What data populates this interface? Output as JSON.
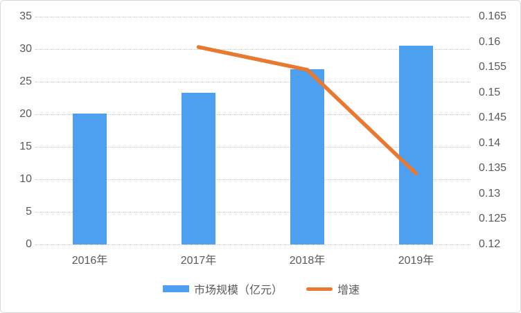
{
  "chart_data": {
    "type": "bar",
    "subtype": "bar+line dual axis",
    "title": "",
    "categories": [
      "2016年",
      "2017年",
      "2018年",
      "2019年"
    ],
    "series": [
      {
        "name": "市场规模（亿元）",
        "type": "bar",
        "axis": "left",
        "color": "#4d9ff0",
        "values": [
          20.1,
          23.3,
          26.9,
          30.5
        ]
      },
      {
        "name": "增速",
        "type": "line",
        "axis": "right",
        "color": "#e87930",
        "values": [
          null,
          0.159,
          0.1545,
          0.134
        ]
      }
    ],
    "left_axis": {
      "min": 0,
      "max": 35,
      "step": 5,
      "ticks": [
        "35",
        "30",
        "25",
        "20",
        "15",
        "10",
        "5",
        "0"
      ]
    },
    "right_axis": {
      "min": 0.12,
      "max": 0.165,
      "step": 0.005,
      "ticks": [
        "0.165",
        "0.16",
        "0.155",
        "0.15",
        "0.145",
        "0.14",
        "0.135",
        "0.13",
        "0.125",
        "0.12"
      ]
    },
    "grid": true,
    "legend_position": "bottom",
    "legend": [
      {
        "label": "市场规模（亿元）",
        "swatch": "bar",
        "series": 0
      },
      {
        "label": "增速",
        "swatch": "line",
        "series": 1
      }
    ],
    "colors": {
      "bar_fill": "#4d9ff0",
      "line_stroke": "#e87930",
      "gridline": "#c6c6c6",
      "tick_text": "#595959",
      "border": "#d9d9d9",
      "background": "#ffffff"
    }
  }
}
